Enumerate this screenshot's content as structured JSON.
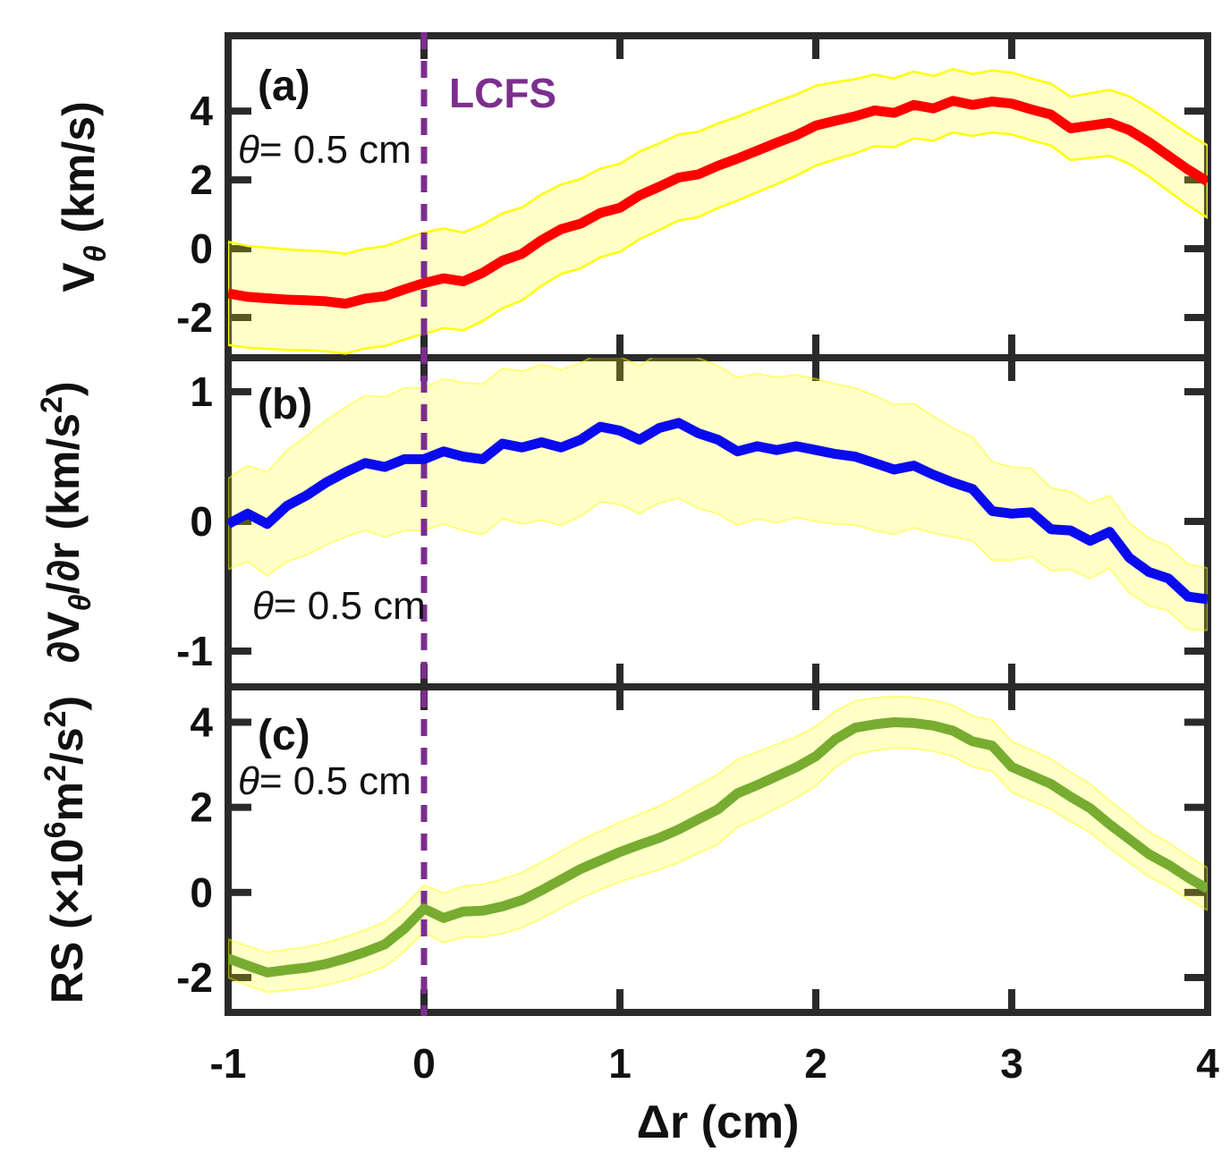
{
  "figure": {
    "title": "",
    "xlabel": "Δr (cm)",
    "xlim": [
      -1,
      4
    ],
    "x_tick_values": [
      -1,
      0,
      1,
      2,
      3,
      4
    ],
    "x_tick_labels": [
      "-1",
      "0",
      "1",
      "2",
      "3",
      "4"
    ],
    "lcfs": {
      "label": "LCFS",
      "x": 0
    },
    "annotation": {
      "parts": [
        {
          "t": "θ",
          "s": "i"
        },
        {
          "t": "= 0.5 cm"
        }
      ],
      "plain": "θ= 0.5 cm"
    },
    "colors": {
      "axis": "#2a2a2a",
      "text": "#111111",
      "red": "#fe0000",
      "blue": "#0a0aee",
      "green": "#77ac30",
      "purple": "#7b2e8e",
      "band_yellow": "#ffff00",
      "background": "#ffffff"
    }
  },
  "chart_data": [
    {
      "id": "a",
      "type": "line",
      "panel_label": "(a)",
      "legend": [],
      "line_color_key": "red",
      "band_edge": "bright",
      "ylabel_plain": "Vθ (km/s)",
      "ylabel_parts": [
        {
          "t": "V"
        },
        {
          "t": "θ",
          "s": "sub"
        },
        {
          "t": " (km/s)"
        }
      ],
      "ylim": [
        -3.17,
        6.19
      ],
      "ytick_values": [
        -2,
        0,
        2,
        4
      ],
      "ytick_labels": [
        "-2",
        "0",
        "2",
        "4"
      ],
      "x": [
        -1.0,
        -0.9,
        -0.8,
        -0.7,
        -0.6,
        -0.5,
        -0.4,
        -0.3,
        -0.2,
        -0.1,
        0.0,
        0.1,
        0.2,
        0.3,
        0.4,
        0.5,
        0.6,
        0.7,
        0.8,
        0.9,
        1.0,
        1.1,
        1.2,
        1.3,
        1.4,
        1.5,
        1.6,
        1.7,
        1.8,
        1.9,
        2.0,
        2.1,
        2.2,
        2.3,
        2.4,
        2.5,
        2.6,
        2.7,
        2.8,
        2.9,
        3.0,
        3.1,
        3.2,
        3.3,
        3.4,
        3.5,
        3.6,
        3.7,
        3.8,
        3.9,
        4.0
      ],
      "y": [
        -1.3,
        -1.4,
        -1.44,
        -1.48,
        -1.5,
        -1.53,
        -1.6,
        -1.45,
        -1.38,
        -1.18,
        -1.0,
        -0.86,
        -0.95,
        -0.7,
        -0.35,
        -0.15,
        0.25,
        0.57,
        0.73,
        1.04,
        1.19,
        1.55,
        1.8,
        2.07,
        2.16,
        2.41,
        2.62,
        2.85,
        3.08,
        3.3,
        3.58,
        3.72,
        3.85,
        4.02,
        3.95,
        4.18,
        4.08,
        4.3,
        4.18,
        4.28,
        4.22,
        4.05,
        3.9,
        3.5,
        3.58,
        3.66,
        3.45,
        3.1,
        2.7,
        2.3,
        1.95
      ],
      "band_half": [
        1.5,
        1.48,
        1.47,
        1.46,
        1.45,
        1.45,
        1.45,
        1.45,
        1.45,
        1.46,
        1.47,
        1.45,
        1.42,
        1.4,
        1.38,
        1.35,
        1.33,
        1.3,
        1.3,
        1.29,
        1.28,
        1.27,
        1.26,
        1.25,
        1.24,
        1.23,
        1.22,
        1.21,
        1.2,
        1.18,
        1.16,
        1.12,
        1.08,
        1.04,
        1.0,
        0.97,
        0.94,
        0.92,
        0.9,
        0.9,
        0.9,
        0.9,
        0.9,
        0.92,
        0.94,
        0.96,
        0.98,
        1.0,
        1.02,
        1.04,
        1.05
      ]
    },
    {
      "id": "b",
      "type": "line",
      "panel_label": "(b)",
      "legend": [],
      "line_color_key": "blue",
      "band_edge": "soft",
      "ylabel_plain": "∂Vθ/∂r (km/s2)",
      "ylabel_parts": [
        {
          "t": "∂"
        },
        {
          "t": "V"
        },
        {
          "t": "θ",
          "s": "sub"
        },
        {
          "t": "/"
        },
        {
          "t": "∂"
        },
        {
          "t": "r (km/s"
        },
        {
          "t": "2",
          "s": "sup"
        },
        {
          "t": ")"
        }
      ],
      "ylim": [
        -1.276,
        1.262
      ],
      "ytick_values": [
        -1,
        0,
        1
      ],
      "ytick_labels": [
        "-1",
        "0",
        "1"
      ],
      "x": [
        -1.0,
        -0.9,
        -0.8,
        -0.7,
        -0.6,
        -0.5,
        -0.4,
        -0.3,
        -0.2,
        -0.1,
        0.0,
        0.1,
        0.2,
        0.3,
        0.4,
        0.5,
        0.6,
        0.7,
        0.8,
        0.9,
        1.0,
        1.1,
        1.2,
        1.3,
        1.4,
        1.5,
        1.6,
        1.7,
        1.8,
        1.9,
        2.0,
        2.1,
        2.2,
        2.3,
        2.4,
        2.5,
        2.6,
        2.7,
        2.8,
        2.9,
        3.0,
        3.1,
        3.2,
        3.3,
        3.4,
        3.5,
        3.6,
        3.7,
        3.8,
        3.9,
        4.0
      ],
      "y": [
        -0.02,
        0.06,
        -0.02,
        0.12,
        0.2,
        0.3,
        0.38,
        0.45,
        0.42,
        0.48,
        0.48,
        0.54,
        0.5,
        0.48,
        0.6,
        0.57,
        0.61,
        0.57,
        0.63,
        0.73,
        0.7,
        0.63,
        0.72,
        0.76,
        0.68,
        0.63,
        0.54,
        0.58,
        0.55,
        0.58,
        0.55,
        0.52,
        0.5,
        0.45,
        0.4,
        0.43,
        0.36,
        0.3,
        0.25,
        0.08,
        0.06,
        0.07,
        -0.06,
        -0.07,
        -0.15,
        -0.08,
        -0.28,
        -0.39,
        -0.44,
        -0.58,
        -0.6
      ],
      "band_half": [
        0.35,
        0.37,
        0.4,
        0.43,
        0.46,
        0.48,
        0.5,
        0.52,
        0.54,
        0.55,
        0.55,
        0.56,
        0.57,
        0.58,
        0.58,
        0.59,
        0.6,
        0.6,
        0.59,
        0.58,
        0.57,
        0.57,
        0.58,
        0.58,
        0.58,
        0.57,
        0.57,
        0.56,
        0.56,
        0.55,
        0.55,
        0.54,
        0.53,
        0.52,
        0.5,
        0.48,
        0.45,
        0.42,
        0.4,
        0.38,
        0.36,
        0.34,
        0.32,
        0.3,
        0.29,
        0.28,
        0.27,
        0.26,
        0.25,
        0.25,
        0.24
      ]
    },
    {
      "id": "c",
      "type": "line",
      "panel_label": "(c)",
      "legend": [],
      "line_color_key": "green",
      "band_edge": "soft",
      "ylabel_plain": "RS (×106m2/s2)",
      "ylabel_parts": [
        {
          "t": "RS (×10"
        },
        {
          "t": "6",
          "s": "sup"
        },
        {
          "t": "m"
        },
        {
          "t": "2",
          "s": "sup"
        },
        {
          "t": "/s"
        },
        {
          "t": "2",
          "s": "sup"
        },
        {
          "t": ")"
        }
      ],
      "ylim": [
        -2.82,
        4.83
      ],
      "ytick_values": [
        -2,
        0,
        2,
        4
      ],
      "ytick_labels": [
        "-2",
        "0",
        "2",
        "4"
      ],
      "x": [
        -1.0,
        -0.9,
        -0.8,
        -0.7,
        -0.6,
        -0.5,
        -0.4,
        -0.3,
        -0.2,
        -0.1,
        0.0,
        0.1,
        0.2,
        0.3,
        0.4,
        0.5,
        0.6,
        0.7,
        0.8,
        0.9,
        1.0,
        1.1,
        1.2,
        1.3,
        1.4,
        1.5,
        1.6,
        1.7,
        1.8,
        1.9,
        2.0,
        2.1,
        2.2,
        2.3,
        2.4,
        2.5,
        2.6,
        2.7,
        2.8,
        2.9,
        3.0,
        3.1,
        3.2,
        3.3,
        3.4,
        3.5,
        3.6,
        3.7,
        3.8,
        3.9,
        4.0
      ],
      "y": [
        -1.55,
        -1.72,
        -1.88,
        -1.82,
        -1.77,
        -1.68,
        -1.55,
        -1.4,
        -1.22,
        -0.85,
        -0.38,
        -0.6,
        -0.45,
        -0.43,
        -0.33,
        -0.18,
        0.05,
        0.3,
        0.55,
        0.75,
        0.95,
        1.12,
        1.28,
        1.48,
        1.72,
        1.95,
        2.33,
        2.52,
        2.73,
        2.94,
        3.2,
        3.6,
        3.87,
        3.95,
        4.0,
        3.98,
        3.92,
        3.8,
        3.55,
        3.45,
        2.95,
        2.75,
        2.55,
        2.25,
        1.98,
        1.6,
        1.25,
        0.9,
        0.65,
        0.35,
        0.08
      ],
      "band_half": [
        0.45,
        0.46,
        0.47,
        0.48,
        0.49,
        0.5,
        0.51,
        0.52,
        0.53,
        0.54,
        0.56,
        0.58,
        0.6,
        0.62,
        0.64,
        0.65,
        0.66,
        0.67,
        0.68,
        0.69,
        0.7,
        0.72,
        0.75,
        0.78,
        0.8,
        0.82,
        0.8,
        0.78,
        0.75,
        0.72,
        0.7,
        0.66,
        0.63,
        0.62,
        0.61,
        0.6,
        0.6,
        0.6,
        0.6,
        0.6,
        0.6,
        0.6,
        0.59,
        0.58,
        0.57,
        0.56,
        0.55,
        0.53,
        0.52,
        0.51,
        0.5
      ]
    }
  ]
}
